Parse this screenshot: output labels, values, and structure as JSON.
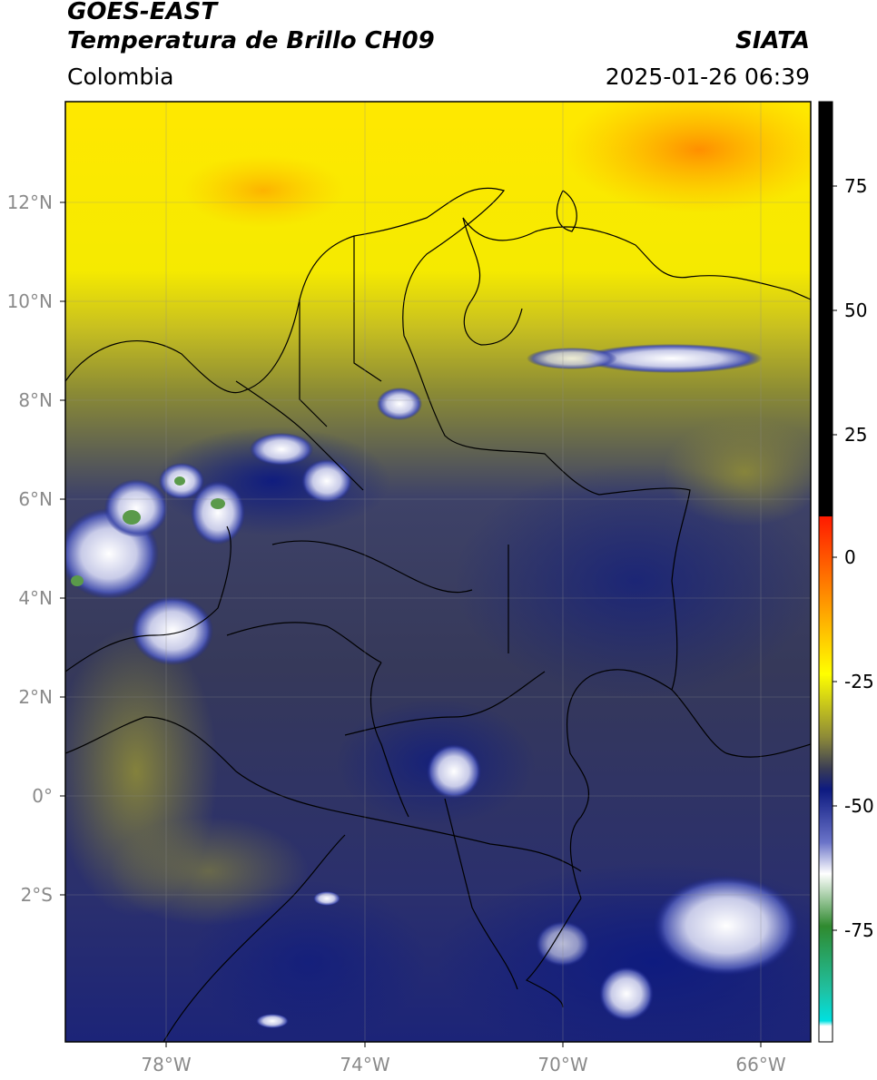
{
  "header": {
    "title_line1": "GOES-EAST",
    "title_line2": "Temperatura de Brillo CH09",
    "brand": "SIATA",
    "region": "Colombia",
    "datetime": "2025-01-26 06:39"
  },
  "map": {
    "lat_labels": [
      "12°N",
      "10°N",
      "8°N",
      "6°N",
      "4°N",
      "2°N",
      "0°",
      "2°S"
    ],
    "lon_labels": [
      "78°W",
      "74°W",
      "70°W",
      "66°W"
    ]
  },
  "colorbar": {
    "tick_labels": [
      "75",
      "50",
      "25",
      "0",
      "-25",
      "-50",
      "-75"
    ],
    "colors": {
      "black": "#000000",
      "red": "#ff1a00",
      "orange": "#ff8c00",
      "yellow": "#ffff00",
      "olive": "#7a7a30",
      "dark_gray": "#3a3d55",
      "navy": "#0d1a80",
      "white": "#ffffff",
      "green": "#2f8a2f",
      "cyan": "#00e0e0"
    }
  }
}
